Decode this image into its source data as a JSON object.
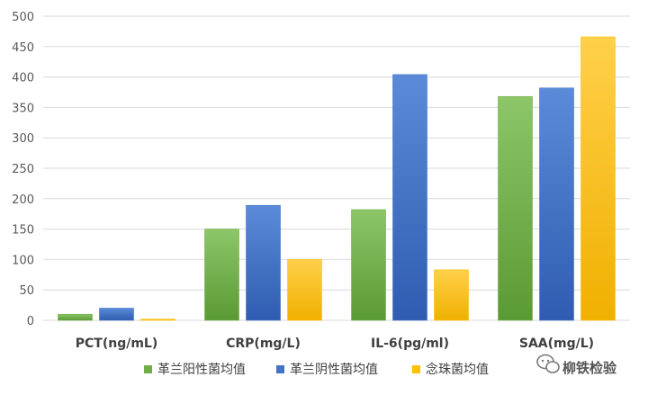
{
  "chart_data": {
    "type": "bar",
    "title": "",
    "xlabel": "",
    "ylabel": "",
    "ylim": [
      0,
      500
    ],
    "yticks": [
      0,
      50,
      100,
      150,
      200,
      250,
      300,
      350,
      400,
      450,
      500
    ],
    "grid": true,
    "legend_position": "bottom",
    "categories": [
      "PCT(ng/mL)",
      "CRP(mg/L)",
      "IL-6(pg/ml)",
      "SAA(mg/L)"
    ],
    "series": [
      {
        "name": "革兰阳性菌均值",
        "color": "#70ad47",
        "values": [
          10,
          150,
          182,
          368
        ]
      },
      {
        "name": "革兰阴性菌均值",
        "color": "#4472c4",
        "values": [
          20,
          189,
          404,
          382
        ]
      },
      {
        "name": "念珠菌均值",
        "color": "#ffc000",
        "values": [
          2,
          100,
          83,
          466
        ]
      }
    ]
  },
  "watermark": {
    "text": "柳铁检验",
    "icon": "wechat-icon"
  }
}
